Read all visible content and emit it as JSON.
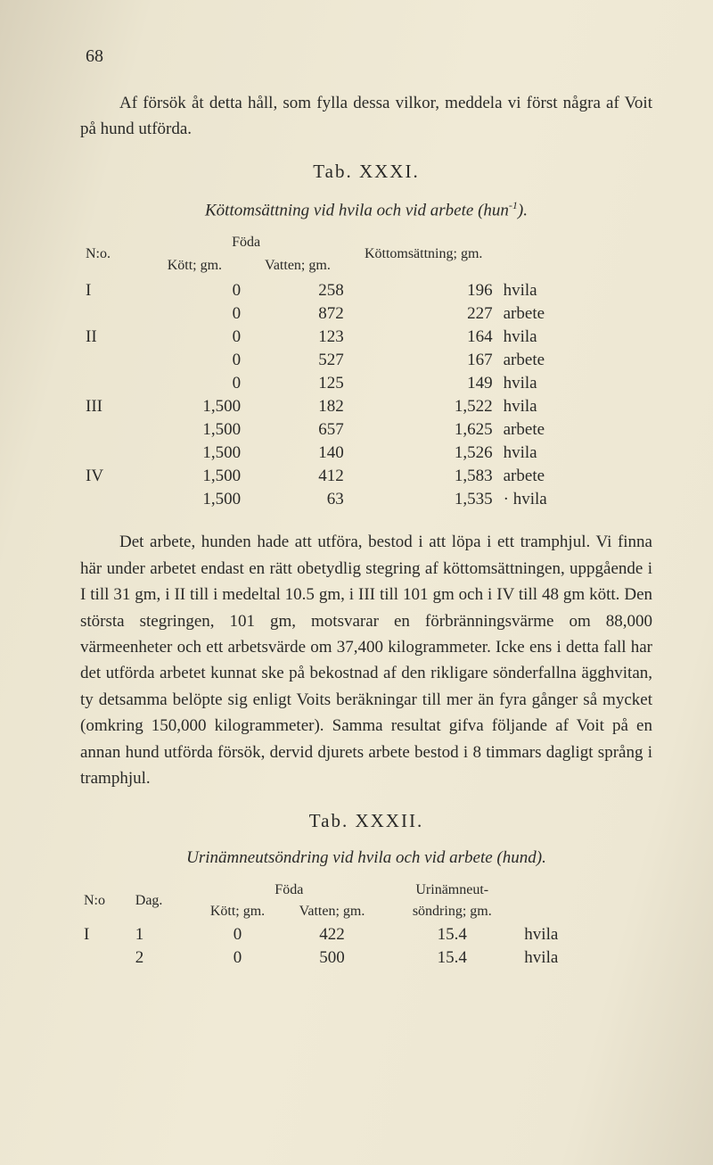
{
  "page_number": "68",
  "intro": "Af försök åt detta håll, som fylla dessa vilkor, meddela vi först några af Voit på hund utförda.",
  "tab1_label": "Tab. XXXI.",
  "tab1_title_prefix": "Köttomsättning vid hvila och vid arbete (hun",
  "tab1_title_sup": "-1",
  "tab1_title_suffix": ").",
  "t1_headers": {
    "no": "N:o.",
    "foda": "Föda",
    "kott_sub": "Kött; gm.",
    "vatten_sub": "Vatten; gm.",
    "koms": "Köttomsättning; gm."
  },
  "t1_rows": [
    {
      "no": "I",
      "kott": "0",
      "vatten": "258",
      "koms": "196",
      "state": "hvila"
    },
    {
      "no": "",
      "kott": "0",
      "vatten": "872",
      "koms": "227",
      "state": "arbete"
    },
    {
      "no": "II",
      "kott": "0",
      "vatten": "123",
      "koms": "164",
      "state": "hvila"
    },
    {
      "no": "",
      "kott": "0",
      "vatten": "527",
      "koms": "167",
      "state": "arbete"
    },
    {
      "no": "",
      "kott": "0",
      "vatten": "125",
      "koms": "149",
      "state": "hvila"
    },
    {
      "no": "III",
      "kott": "1,500",
      "vatten": "182",
      "koms": "1,522",
      "state": "hvila"
    },
    {
      "no": "",
      "kott": "1,500",
      "vatten": "657",
      "koms": "1,625",
      "state": "arbete"
    },
    {
      "no": "",
      "kott": "1,500",
      "vatten": "140",
      "koms": "1,526",
      "state": "hvila"
    },
    {
      "no": "IV",
      "kott": "1,500",
      "vatten": "412",
      "koms": "1,583",
      "state": "arbete"
    },
    {
      "no": "",
      "kott": "1,500",
      "vatten": "63",
      "koms": "1,535",
      "state": "· hvila"
    }
  ],
  "body1": "Det arbete, hunden hade att utföra, bestod i att löpa i ett tramphjul. Vi finna här under arbetet endast en rätt obetydlig stegring af köttomsättningen, uppgående i I till 31 gm, i II till i medeltal 10.5 gm, i III till 101 gm och i IV till 48 gm kött. Den största stegringen, 101 gm, motsvarar en förbränningsvärme om 88,000 värmeenheter och ett arbetsvärde om 37,400 kilogrammeter. Icke ens i detta fall har det utförda arbetet kunnat ske på bekostnad af den rikligare sönderfallna ägghvitan, ty detsamma belöpte sig enligt Voits beräkningar till mer än fyra gånger så mycket (omkring 150,000 kilogrammeter). Samma resultat gifva följande af Voit på en annan hund utförda försök, dervid djurets arbete bestod i 8 timmars dagligt språng i tramphjul.",
  "tab2_label": "Tab. XXXII.",
  "tab2_title": "Urinämneutsöndring vid hvila och vid arbete (hund).",
  "t2_headers": {
    "no": "N:o",
    "dag": "Dag.",
    "foda": "Föda",
    "kott_sub": "Kött; gm.",
    "vatten_sub": "Vatten; gm.",
    "urin_top": "Urinämneut-",
    "urin_sub": "söndring; gm."
  },
  "t2_rows": [
    {
      "no": "I",
      "dag": "1",
      "kott": "0",
      "vatten": "422",
      "urin": "15.4",
      "state": "hvila"
    },
    {
      "no": "",
      "dag": "2",
      "kott": "0",
      "vatten": "500",
      "urin": "15.4",
      "state": "hvila"
    }
  ]
}
